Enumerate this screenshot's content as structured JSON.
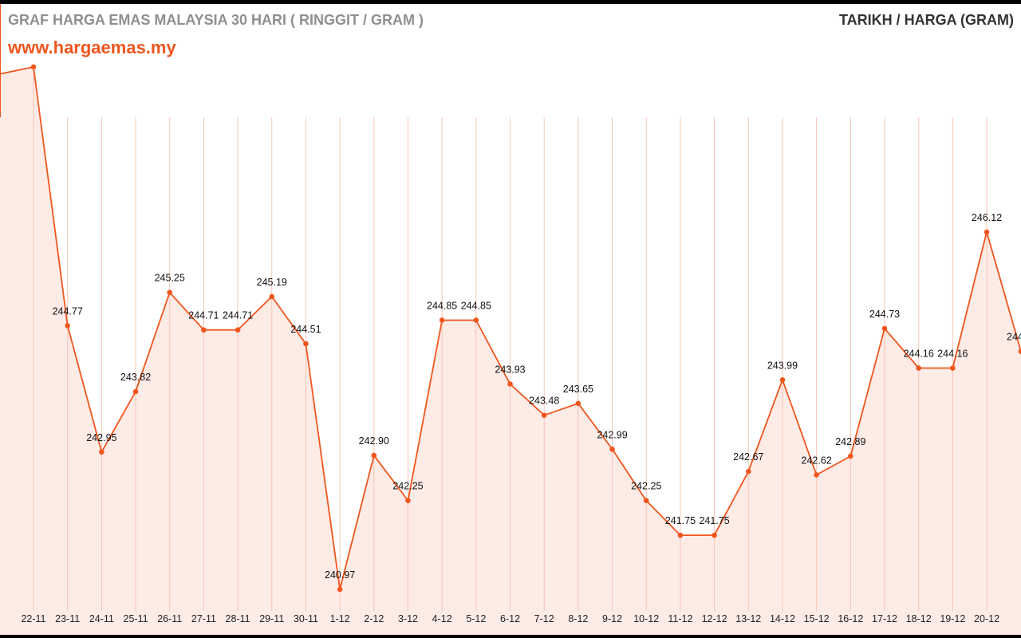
{
  "header": {
    "title": "GRAF HARGA EMAS MALAYSIA 30 HARI ( RINGGIT / GRAM )",
    "website": "www.hargaemas.my",
    "legend": "TARIKH / HARGA (GRAM)"
  },
  "colors": {
    "line": "#f0561e",
    "fill": "#fdebe6",
    "grid": "#f7c5b3",
    "label": "#111111",
    "tick": "#222222"
  },
  "chart_data": {
    "type": "area",
    "title": "GRAF HARGA EMAS MALAYSIA 30 HARI ( RINGGIT / GRAM )",
    "xlabel": "",
    "ylabel": "",
    "categories": [
      "22-11",
      "23-11",
      "24-11",
      "25-11",
      "26-11",
      "27-11",
      "28-11",
      "29-11",
      "30-11",
      "1-12",
      "2-12",
      "3-12",
      "4-12",
      "5-12",
      "6-12",
      "7-12",
      "8-12",
      "9-12",
      "10-12",
      "11-12",
      "12-12",
      "13-12",
      "14-12",
      "15-12",
      "16-12",
      "17-12",
      "18-12",
      "19-12",
      "20-12"
    ],
    "series": [
      {
        "values": [
          248.5,
          244.77,
          242.95,
          243.82,
          245.25,
          244.71,
          244.71,
          245.19,
          244.51,
          240.97,
          242.9,
          242.25,
          244.85,
          244.85,
          243.93,
          243.48,
          243.65,
          242.99,
          242.25,
          241.75,
          241.75,
          242.67,
          243.99,
          242.62,
          242.89,
          244.73,
          244.16,
          244.16,
          246.12
        ],
        "labels": [
          "",
          "244.77",
          "242.95",
          "243.82",
          "245.25",
          "244.71",
          "244.71",
          "245.19",
          "244.51",
          "240.97",
          "242.90",
          "242.25",
          "244.85",
          "244.85",
          "243.93",
          "243.48",
          "243.65",
          "242.99",
          "242.25",
          "241.75",
          "241.75",
          "242.67",
          "243.99",
          "242.62",
          "242.89",
          "244.73",
          "244.16",
          "244.16",
          "246.12"
        ]
      }
    ],
    "partial_start": {
      "value": 248.4
    },
    "partial_end": {
      "value": 244.4,
      "label": "244"
    },
    "grid": "vertical"
  }
}
